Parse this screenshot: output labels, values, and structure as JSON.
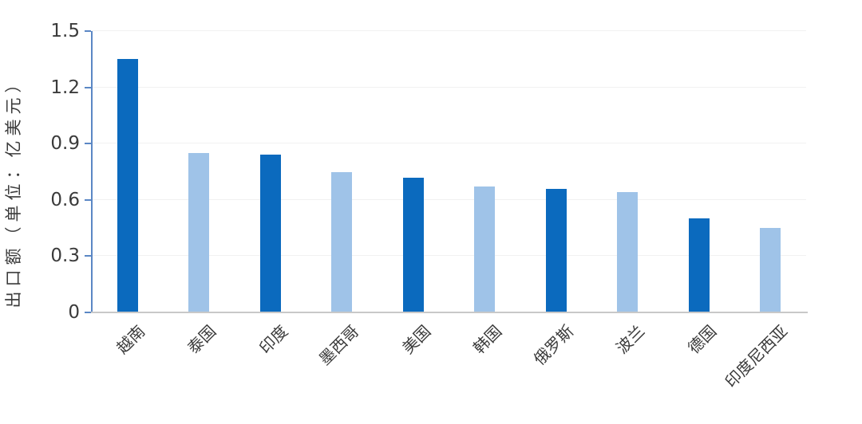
{
  "chart_data": {
    "type": "bar",
    "title": "",
    "ylabel": "出口额（单位：亿美元）",
    "xlabel": "",
    "categories": [
      "越南",
      "泰国",
      "印度",
      "墨西哥",
      "美国",
      "韩国",
      "俄罗斯",
      "波兰",
      "德国",
      "印度尼西亚"
    ],
    "category_ids": [
      "vietnam",
      "thailand",
      "india",
      "mexico",
      "usa",
      "south-korea",
      "russia",
      "poland",
      "germany",
      "indonesia"
    ],
    "values": [
      1.35,
      0.85,
      0.84,
      0.75,
      0.72,
      0.67,
      0.66,
      0.64,
      0.5,
      0.45
    ],
    "bar_colors": [
      "#0b6abe",
      "#9fc3e8",
      "#0b6abe",
      "#9fc3e8",
      "#0b6abe",
      "#9fc3e8",
      "#0b6abe",
      "#9fc3e8",
      "#0b6abe",
      "#9fc3e8"
    ],
    "ylim": [
      0,
      1.5
    ],
    "ytick_labels": [
      "0",
      "0.3",
      "0.6",
      "0.9",
      "1.2",
      "1.5"
    ],
    "ytick_values": [
      0,
      0.3,
      0.6,
      0.9,
      1.2,
      1.5
    ],
    "grid": true,
    "legend": "none",
    "colors": {
      "primary_bar": "#0b6abe",
      "secondary_bar": "#9fc3e8",
      "axis": "#5b87c5",
      "baseline": "#c8c8c8",
      "gridline": "#f1f1f1",
      "text": "#3b3b3b",
      "background": "#ffffff"
    }
  }
}
